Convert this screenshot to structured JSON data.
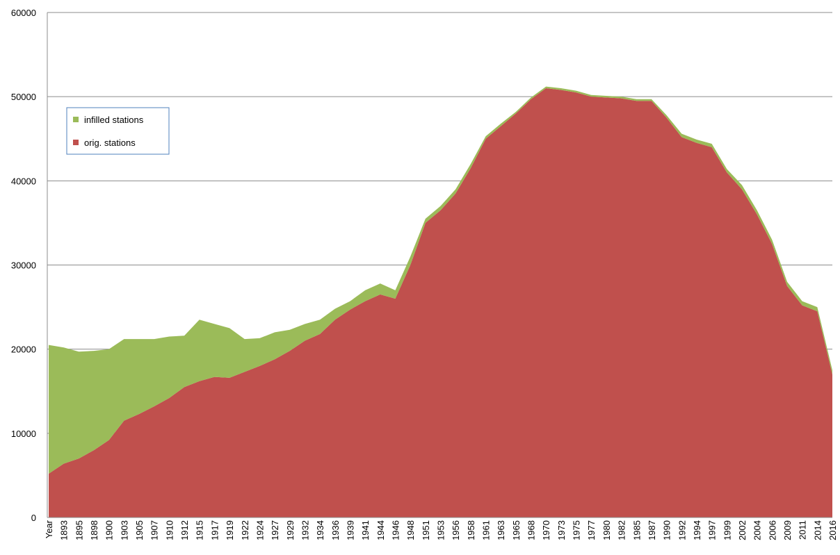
{
  "chart_data": {
    "type": "stacked-area",
    "categories": [
      "Year",
      "1893",
      "1895",
      "1898",
      "1900",
      "1903",
      "1905",
      "1907",
      "1910",
      "1912",
      "1915",
      "1917",
      "1919",
      "1922",
      "1924",
      "1927",
      "1929",
      "1932",
      "1934",
      "1936",
      "1939",
      "1941",
      "1944",
      "1946",
      "1948",
      "1951",
      "1953",
      "1956",
      "1958",
      "1961",
      "1963",
      "1965",
      "1968",
      "1970",
      "1973",
      "1975",
      "1977",
      "1980",
      "1982",
      "1985",
      "1987",
      "1990",
      "1992",
      "1994",
      "1997",
      "1999",
      "2002",
      "2004",
      "2006",
      "2009",
      "2011",
      "2014",
      "2016"
    ],
    "series": [
      {
        "name": "orig. stations",
        "color": "#c0504d",
        "values": [
          5200,
          6400,
          7000,
          8000,
          9200,
          11500,
          12300,
          13200,
          14200,
          15500,
          16200,
          16700,
          16600,
          17300,
          18000,
          18800,
          19800,
          21000,
          21800,
          23500,
          24700,
          25700,
          26500,
          26000,
          30000,
          35000,
          36500,
          38500,
          41500,
          45000,
          46500,
          48000,
          49700,
          51000,
          50800,
          50500,
          50000,
          49900,
          49800,
          49500,
          49500,
          47500,
          45200,
          44500,
          44000,
          41000,
          39000,
          36000,
          32500,
          27500,
          25200,
          24500,
          17000
        ]
      },
      {
        "name": "infilled stations",
        "color": "#9bbb59",
        "values": [
          15300,
          13800,
          12700,
          11800,
          10800,
          9700,
          8900,
          8000,
          7300,
          6100,
          7300,
          6300,
          5900,
          3900,
          3300,
          3200,
          2500,
          2000,
          1700,
          1300,
          1000,
          1300,
          1300,
          1000,
          1000,
          500,
          500,
          500,
          500,
          300,
          300,
          200,
          200,
          200,
          200,
          200,
          200,
          200,
          200,
          200,
          200,
          300,
          400,
          400,
          400,
          400,
          500,
          500,
          500,
          500,
          500,
          500,
          500
        ]
      }
    ],
    "ylim": [
      0,
      60000
    ],
    "yticks": [
      0,
      10000,
      20000,
      30000,
      40000,
      50000,
      60000
    ],
    "grid": true
  }
}
